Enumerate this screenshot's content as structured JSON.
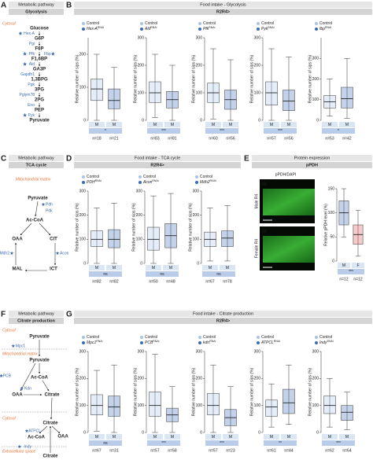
{
  "panels": {
    "A": {
      "letter": "A",
      "header": "Metabolic pathway",
      "title": "Glycolysis",
      "compartment": "Cytosol",
      "metabolites": [
        "Glucose",
        "G6P",
        "F6P",
        "F1,6BP",
        "GA3P",
        "1,3BPG",
        "3PG",
        "2PG",
        "PEP",
        "Pyruvate"
      ],
      "enzymes": [
        [
          {
            "label": "Hex-A",
            "targeted": true
          }
        ],
        [
          {
            "label": "Pgi",
            "targeted": false
          }
        ],
        [
          {
            "label": "Pfk",
            "targeted": true
          },
          {
            "label": "Fbp",
            "targeted": true
          }
        ],
        [
          {
            "label": "Ald",
            "targeted": true
          }
        ],
        [
          {
            "label": "Gapdh1",
            "targeted": false
          }
        ],
        [
          {
            "label": "Pgk",
            "targeted": false
          }
        ],
        [
          {
            "label": "Pglym78",
            "targeted": false
          }
        ],
        [
          {
            "label": "Eno",
            "targeted": false
          }
        ],
        [
          {
            "label": "Pyk",
            "targeted": true
          }
        ]
      ]
    },
    "B": {
      "letter": "B",
      "header": "Food intake - Glycolysis",
      "subtitle": "R2R4>"
    },
    "C": {
      "letter": "C",
      "header": "Metabolic pathway",
      "title": "TCA cycle",
      "compartment": "Mitochondrial matrix",
      "nodes": [
        "Pyruvate",
        "Ac-CoA",
        "CIT",
        "ICT",
        "MAL",
        "OAA"
      ],
      "enzymes": [
        {
          "label": "Pdh",
          "targeted": true
        },
        {
          "label": "Pdk",
          "targeted": false
        },
        {
          "label": "Acon",
          "targeted": true
        },
        {
          "label": "Mdh2",
          "targeted": true
        }
      ]
    },
    "D": {
      "letter": "D",
      "header": "Food intake - TCA cycle",
      "subtitle": "R2R4>"
    },
    "E": {
      "letter": "E",
      "header": "Protein expression",
      "title": "pPDH",
      "stain": "pPDH/DAPI",
      "age": [
        "5d",
        "5d"
      ],
      "rows": [
        "Male R4",
        "Female R4"
      ]
    },
    "F": {
      "letter": "F",
      "header": "Metabolic pathway",
      "title": "Citrate production",
      "compartments": [
        "Cytosol",
        "Mitochondrial matrix",
        "Cytosol",
        "Extracellular space"
      ],
      "nodes": [
        "Pyruvate",
        "Pyruvate",
        "Ac-CoA",
        "OAA",
        "Citrate",
        "Citrate",
        "OAA",
        "Ac-CoA",
        "Citrate"
      ],
      "enzymes": [
        {
          "label": "Mpc1",
          "targeted": true
        },
        {
          "label": "PCB",
          "targeted": true
        },
        {
          "label": "Kdn",
          "targeted": true
        },
        {
          "label": "ATPCL",
          "targeted": true
        },
        {
          "label": "Indy",
          "targeted": true
        }
      ]
    },
    "G": {
      "letter": "G",
      "header": "Food intake - Citrate production",
      "subtitle": "R2R4>"
    }
  },
  "chart_data": [
    {
      "type": "box",
      "ylabel": "Relative number of sips (%)",
      "ylim": [
        0,
        250
      ],
      "yticks": [
        0,
        100,
        200
      ],
      "categories": [
        "M",
        "M"
      ],
      "significance": "*",
      "n_labels": [
        "n=18",
        "n=21"
      ],
      "series": [
        {
          "name": "Control",
          "color": "#a9c4e8",
          "q1": 60,
          "median": 95,
          "q3": 125,
          "low": 0,
          "high": 200
        },
        {
          "name": "Hex-A",
          "sup": "RNAi",
          "color": "#3d6bb5",
          "q1": 35,
          "median": 60,
          "q3": 95,
          "low": 0,
          "high": 160
        }
      ]
    },
    {
      "type": "box",
      "ylabel": "Relative number of sips (%)",
      "ylim": [
        0,
        300
      ],
      "yticks": [
        0,
        100,
        200,
        300
      ],
      "categories": [
        "M",
        "M"
      ],
      "significance": "***",
      "n_labels": [
        "n=83",
        "n=81"
      ],
      "series": [
        {
          "name": "Control",
          "color": "#a9c4e8",
          "q1": 65,
          "median": 100,
          "q3": 140,
          "low": 10,
          "high": 240
        },
        {
          "name": "Ald",
          "sup": "RNAi",
          "color": "#3d6bb5",
          "q1": 45,
          "median": 75,
          "q3": 105,
          "low": 0,
          "high": 200
        }
      ]
    },
    {
      "type": "box",
      "ylabel": "Relative number of sips (%)",
      "ylim": [
        0,
        300
      ],
      "yticks": [
        0,
        100,
        200,
        300
      ],
      "categories": [
        "M",
        "M"
      ],
      "significance": "***",
      "n_labels": [
        "n=60",
        "n=56"
      ],
      "series": [
        {
          "name": "Control",
          "color": "#a9c4e8",
          "q1": 65,
          "median": 100,
          "q3": 135,
          "low": 5,
          "high": 260
        },
        {
          "name": "Pfk",
          "sup": "RNAi",
          "color": "#3d6bb5",
          "q1": 40,
          "median": 75,
          "q3": 110,
          "low": 0,
          "high": 220
        }
      ]
    },
    {
      "type": "box",
      "ylabel": "Relative number of sips (%)",
      "ylim": [
        0,
        300
      ],
      "yticks": [
        0,
        100,
        200,
        300
      ],
      "categories": [
        "M",
        "M"
      ],
      "significance": "***",
      "n_labels": [
        "n=57",
        "n=56"
      ],
      "series": [
        {
          "name": "Control",
          "color": "#a9c4e8",
          "q1": 55,
          "median": 100,
          "q3": 140,
          "low": 0,
          "high": 260
        },
        {
          "name": "Pyk",
          "sup": "RNAi",
          "color": "#3d6bb5",
          "q1": 35,
          "median": 70,
          "q3": 110,
          "low": 0,
          "high": 230
        }
      ]
    },
    {
      "type": "box",
      "ylabel": "Relative number of sips (%)",
      "ylim": [
        0,
        400
      ],
      "yticks": [
        0,
        100,
        200,
        300
      ],
      "categories": [
        "M",
        "M"
      ],
      "significance": "*",
      "n_labels": [
        "n=53",
        "n=42"
      ],
      "series": [
        {
          "name": "Control",
          "color": "#a9c4e8",
          "q1": 60,
          "median": 90,
          "q3": 120,
          "low": 20,
          "high": 200
        },
        {
          "name": "fbp",
          "sup": "RNAi",
          "color": "#3d6bb5",
          "q1": 60,
          "median": 105,
          "q3": 160,
          "low": 10,
          "high": 300
        }
      ]
    },
    {
      "type": "box",
      "ylabel": "Relative number of sips (%)",
      "ylim": [
        0,
        300
      ],
      "yticks": [
        0,
        100,
        200,
        300
      ],
      "categories": [
        "M",
        "M"
      ],
      "significance": "ns",
      "n_labels": [
        "n=82",
        "n=82"
      ],
      "series": [
        {
          "name": "Control",
          "color": "#a9c4e8",
          "q1": 70,
          "median": 100,
          "q3": 135,
          "low": 0,
          "high": 230
        },
        {
          "name": "PDH",
          "sup": "RNAi",
          "color": "#3d6bb5",
          "q1": 65,
          "median": 100,
          "q3": 140,
          "low": 0,
          "high": 250
        }
      ]
    },
    {
      "type": "box",
      "ylabel": "Relative number of sips (%)",
      "ylim": [
        0,
        300
      ],
      "yticks": [
        0,
        100,
        200,
        300
      ],
      "categories": [
        "M",
        "M"
      ],
      "significance": "ns",
      "n_labels": [
        "n=50",
        "n=48"
      ],
      "series": [
        {
          "name": "Control",
          "color": "#a9c4e8",
          "q1": 55,
          "median": 100,
          "q3": 150,
          "low": 0,
          "high": 280
        },
        {
          "name": "Acon",
          "sup": "RNAi",
          "color": "#3d6bb5",
          "q1": 65,
          "median": 115,
          "q3": 165,
          "low": 0,
          "high": 290
        }
      ]
    },
    {
      "type": "box",
      "ylabel": "Relative number of sips (%)",
      "ylim": [
        0,
        300
      ],
      "yticks": [
        0,
        100,
        200,
        300
      ],
      "categories": [
        "M",
        "M"
      ],
      "significance": "ns",
      "n_labels": [
        "n=67",
        "n=78"
      ],
      "series": [
        {
          "name": "Control",
          "color": "#a9c4e8",
          "q1": 70,
          "median": 100,
          "q3": 130,
          "low": 10,
          "high": 230
        },
        {
          "name": "Mdh2",
          "sup": "RNAi",
          "color": "#3d6bb5",
          "q1": 70,
          "median": 105,
          "q3": 135,
          "low": 10,
          "high": 240
        }
      ]
    },
    {
      "type": "box",
      "ylabel": "Relative pPDH level (%)",
      "ylim": [
        0,
        150
      ],
      "yticks": [
        0,
        50,
        100,
        150
      ],
      "categories": [
        "M",
        "F"
      ],
      "significance": "***",
      "n_labels": [
        "n=12",
        "n=12"
      ],
      "series": [
        {
          "color": "#3d6bb5",
          "q1": 75,
          "median": 100,
          "q3": 125,
          "low": 50,
          "high": 150
        },
        {
          "color": "#d9534f",
          "q1": 35,
          "median": 55,
          "q3": 75,
          "low": 10,
          "high": 105
        }
      ]
    },
    {
      "type": "box",
      "ylabel": "Relative number of sips (%)",
      "ylim": [
        0,
        300
      ],
      "yticks": [
        0,
        100,
        200,
        300
      ],
      "categories": [
        "M",
        "M"
      ],
      "significance": "ns",
      "n_labels": [
        "n=67",
        "n=31"
      ],
      "series": [
        {
          "name": "Control",
          "color": "#a9c4e8",
          "q1": 65,
          "median": 100,
          "q3": 140,
          "low": 5,
          "high": 230
        },
        {
          "name": "Mpc1",
          "sup": "RNAi",
          "color": "#3d6bb5",
          "q1": 60,
          "median": 95,
          "q3": 135,
          "low": 0,
          "high": 250
        }
      ]
    },
    {
      "type": "box",
      "ylabel": "Relative number of sips (%)",
      "ylim": [
        0,
        300
      ],
      "yticks": [
        0,
        100,
        200,
        300
      ],
      "categories": [
        "M",
        "M"
      ],
      "significance": "***",
      "n_labels": [
        "n=57",
        "n=58"
      ],
      "series": [
        {
          "name": "Control",
          "color": "#a9c4e8",
          "q1": 60,
          "median": 100,
          "q3": 150,
          "low": 0,
          "high": 290
        },
        {
          "name": "PCB",
          "sup": "RNAi",
          "color": "#3d6bb5",
          "q1": 40,
          "median": 65,
          "q3": 90,
          "low": 0,
          "high": 170
        }
      ]
    },
    {
      "type": "box",
      "ylabel": "Relative number of sips (%)",
      "ylim": [
        0,
        300
      ],
      "yticks": [
        0,
        100,
        200,
        300
      ],
      "categories": [
        "M",
        "M"
      ],
      "significance": "***",
      "n_labels": [
        "n=57",
        "n=23"
      ],
      "series": [
        {
          "name": "Control",
          "color": "#a9c4e8",
          "q1": 65,
          "median": 100,
          "q3": 145,
          "low": 0,
          "high": 250
        },
        {
          "name": "kdn",
          "sup": "RNAi",
          "color": "#3d6bb5",
          "q1": 25,
          "median": 55,
          "q3": 85,
          "low": 0,
          "high": 170
        }
      ]
    },
    {
      "type": "box",
      "ylabel": "Relative number of sips (%)",
      "ylim": [
        0,
        300
      ],
      "yticks": [
        0,
        100,
        200,
        300
      ],
      "categories": [
        "M",
        "M"
      ],
      "significance": "**",
      "n_labels": [
        "n=61",
        "n=44"
      ],
      "series": [
        {
          "name": "Control",
          "color": "#a9c4e8",
          "q1": 60,
          "median": 95,
          "q3": 120,
          "low": 20,
          "high": 180
        },
        {
          "name": "ATPCL",
          "sup": "RNAi",
          "color": "#3d6bb5",
          "q1": 70,
          "median": 110,
          "q3": 160,
          "low": 30,
          "high": 250
        }
      ]
    },
    {
      "type": "box",
      "ylabel": "Relative number of sips (%)",
      "ylim": [
        0,
        300
      ],
      "yticks": [
        0,
        100,
        200,
        300
      ],
      "categories": [
        "M",
        "M"
      ],
      "significance": "***",
      "n_labels": [
        "n=62",
        "n=64"
      ],
      "series": [
        {
          "name": "Control",
          "color": "#a9c4e8",
          "q1": 70,
          "median": 100,
          "q3": 135,
          "low": 20,
          "high": 200
        },
        {
          "name": "Indy",
          "sup": "RNAi",
          "color": "#3d6bb5",
          "q1": 45,
          "median": 75,
          "q3": 100,
          "low": 10,
          "high": 150
        }
      ]
    }
  ]
}
